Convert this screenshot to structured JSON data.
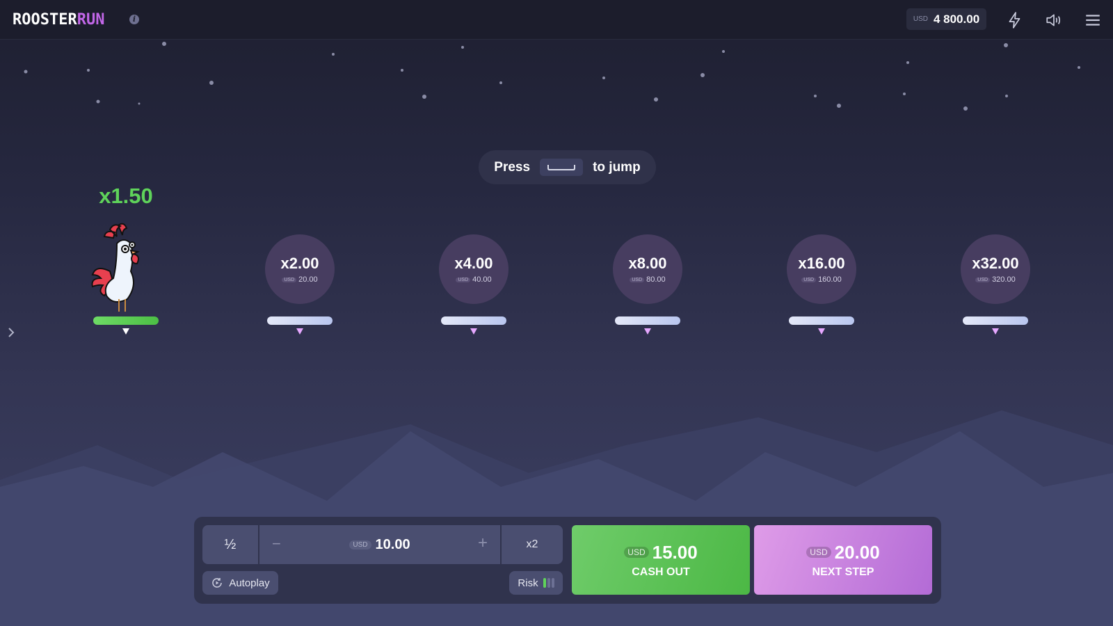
{
  "header": {
    "logo_part1": "ROOSTER",
    "logo_part2": "RUN",
    "balance_currency": "USD",
    "balance": "4 800.00",
    "icons": [
      "info-icon",
      "lightning-icon",
      "sound-icon",
      "menu-icon"
    ]
  },
  "hint": {
    "before": "Press",
    "key": "space-key-icon",
    "after": "to jump"
  },
  "current_multiplier": "x1.50",
  "steps": [
    {
      "multiplier": "x2.00",
      "currency": "USD",
      "amount": "20.00"
    },
    {
      "multiplier": "x4.00",
      "currency": "USD",
      "amount": "40.00"
    },
    {
      "multiplier": "x8.00",
      "currency": "USD",
      "amount": "80.00"
    },
    {
      "multiplier": "x16.00",
      "currency": "USD",
      "amount": "160.00"
    },
    {
      "multiplier": "x32.00",
      "currency": "USD",
      "amount": "320.00"
    }
  ],
  "controls": {
    "half_label": "½",
    "bet_currency": "USD",
    "bet_amount": "10.00",
    "minus": "−",
    "plus": "+",
    "double_label": "x2",
    "autoplay_label": "Autoplay",
    "risk_label": "Risk",
    "risk_level": 1,
    "risk_max": 3
  },
  "cashout": {
    "currency": "USD",
    "amount": "15.00",
    "label": "CASH OUT"
  },
  "next_step": {
    "currency": "USD",
    "amount": "20.00",
    "label": "NEXT STEP"
  },
  "colors": {
    "accent_green": "#5fd35a",
    "accent_purple": "#c267e8",
    "background": "#262840"
  }
}
